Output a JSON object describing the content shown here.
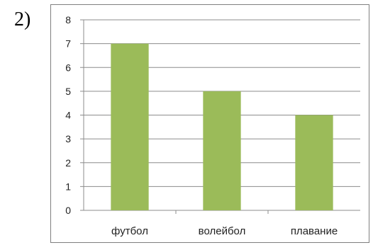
{
  "item_number": "2)",
  "chart_data": {
    "type": "bar",
    "categories": [
      "футбол",
      "волейбол",
      "плавание"
    ],
    "values": [
      7,
      5,
      4
    ],
    "ylim": [
      0,
      8
    ],
    "yticks": [
      "0",
      "1",
      "2",
      "3",
      "4",
      "5",
      "6",
      "7",
      "8"
    ],
    "title": "",
    "xlabel": "",
    "ylabel": "",
    "grid": true,
    "legend": "none",
    "bar_color": "#9bbb59",
    "grid_color": "#8c8c8c"
  }
}
